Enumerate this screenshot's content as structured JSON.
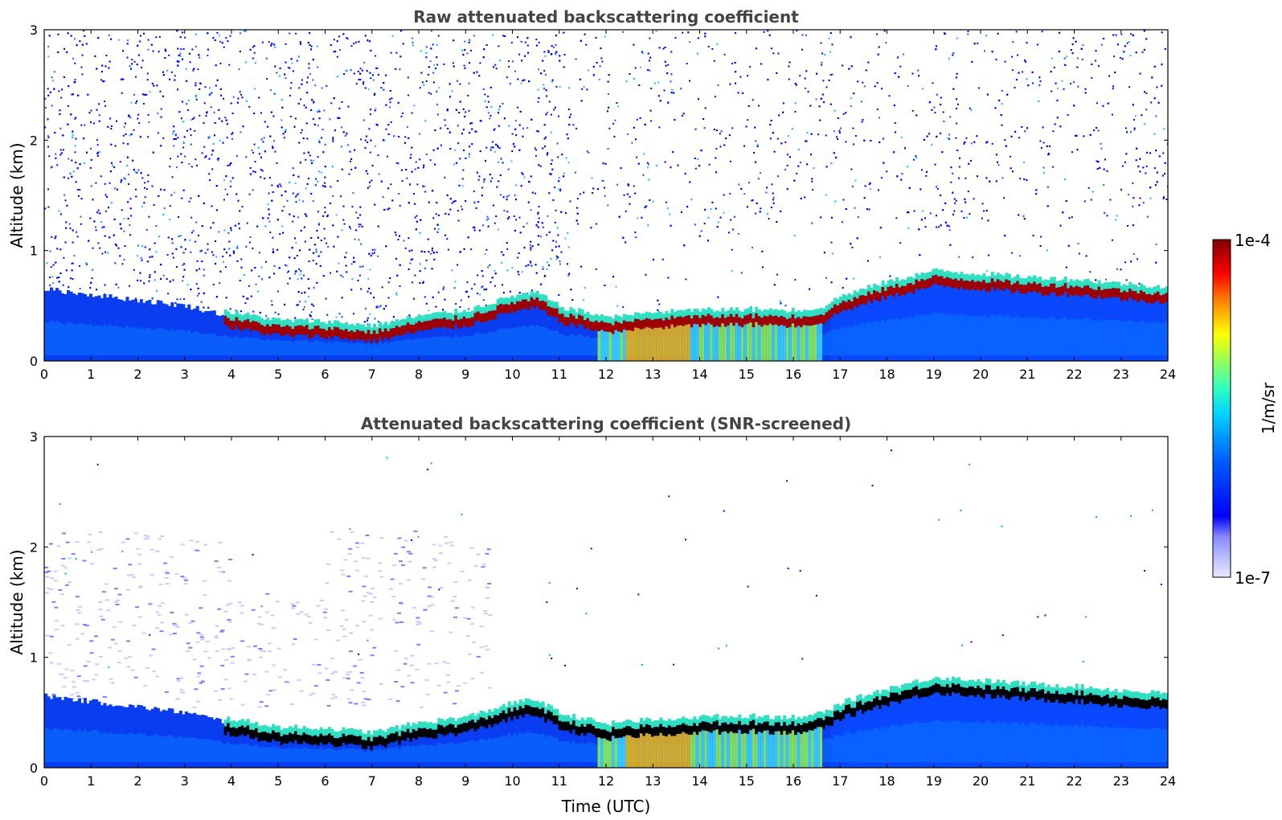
{
  "chart_data": [
    {
      "type": "heatmap",
      "title": "Raw attenuated backscattering coefficient",
      "xlabel": "",
      "ylabel": "Altitude (km)",
      "xlim": [
        0,
        24
      ],
      "ylim": [
        0,
        3
      ],
      "x_ticks": [
        0,
        1,
        2,
        3,
        4,
        5,
        6,
        7,
        8,
        9,
        10,
        11,
        12,
        13,
        14,
        15,
        16,
        17,
        18,
        19,
        20,
        21,
        22,
        23,
        24
      ],
      "y_ticks": [
        0,
        1,
        2,
        3
      ],
      "noise_level": "high",
      "layer_top_km": [
        [
          0,
          0.65
        ],
        [
          1,
          0.6
        ],
        [
          2,
          0.55
        ],
        [
          3,
          0.5
        ],
        [
          4,
          0.4
        ],
        [
          5,
          0.33
        ],
        [
          6,
          0.32
        ],
        [
          7,
          0.28
        ],
        [
          8,
          0.37
        ],
        [
          9,
          0.42
        ],
        [
          10,
          0.55
        ],
        [
          10.5,
          0.58
        ],
        [
          11,
          0.45
        ],
        [
          12,
          0.36
        ],
        [
          13,
          0.4
        ],
        [
          14,
          0.42
        ],
        [
          15,
          0.43
        ],
        [
          16,
          0.42
        ],
        [
          16.6,
          0.45
        ],
        [
          17,
          0.55
        ],
        [
          18,
          0.68
        ],
        [
          19,
          0.78
        ],
        [
          20,
          0.75
        ],
        [
          21,
          0.72
        ],
        [
          22,
          0.7
        ],
        [
          23,
          0.66
        ],
        [
          24,
          0.63
        ]
      ]
    },
    {
      "type": "heatmap",
      "title": "Attenuated backscattering coefficient (SNR-screened)",
      "xlabel": "Time (UTC)",
      "ylabel": "Altitude (km)",
      "xlim": [
        0,
        24
      ],
      "ylim": [
        0,
        3
      ],
      "x_ticks": [
        0,
        1,
        2,
        3,
        4,
        5,
        6,
        7,
        8,
        9,
        10,
        11,
        12,
        13,
        14,
        15,
        16,
        17,
        18,
        19,
        20,
        21,
        22,
        23,
        24
      ],
      "y_ticks": [
        0,
        1,
        2,
        3
      ],
      "noise_level": "screened",
      "layer_top_km": [
        [
          0,
          0.65
        ],
        [
          1,
          0.6
        ],
        [
          2,
          0.55
        ],
        [
          3,
          0.5
        ],
        [
          4,
          0.4
        ],
        [
          5,
          0.33
        ],
        [
          6,
          0.32
        ],
        [
          7,
          0.28
        ],
        [
          8,
          0.37
        ],
        [
          9,
          0.42
        ],
        [
          10,
          0.55
        ],
        [
          10.5,
          0.58
        ],
        [
          11,
          0.45
        ],
        [
          12,
          0.36
        ],
        [
          13,
          0.4
        ],
        [
          14,
          0.42
        ],
        [
          15,
          0.43
        ],
        [
          16,
          0.42
        ],
        [
          16.6,
          0.45
        ],
        [
          17,
          0.55
        ],
        [
          18,
          0.68
        ],
        [
          19,
          0.78
        ],
        [
          20,
          0.75
        ],
        [
          21,
          0.72
        ],
        [
          22,
          0.7
        ],
        [
          23,
          0.66
        ],
        [
          24,
          0.63
        ]
      ]
    }
  ],
  "colorbar": {
    "min_label": "1e-7",
    "max_label": "1e-4",
    "unit": "1/m/sr",
    "colors": [
      "#e8e8ff",
      "#b8bcff",
      "#8888ff",
      "#4040ff",
      "#0000ff",
      "#0050ff",
      "#00a0ff",
      "#00e0ff",
      "#40ffc0",
      "#a0ff60",
      "#ffff00",
      "#ffb000",
      "#ff6000",
      "#ff0000",
      "#c00000",
      "#800000"
    ]
  }
}
